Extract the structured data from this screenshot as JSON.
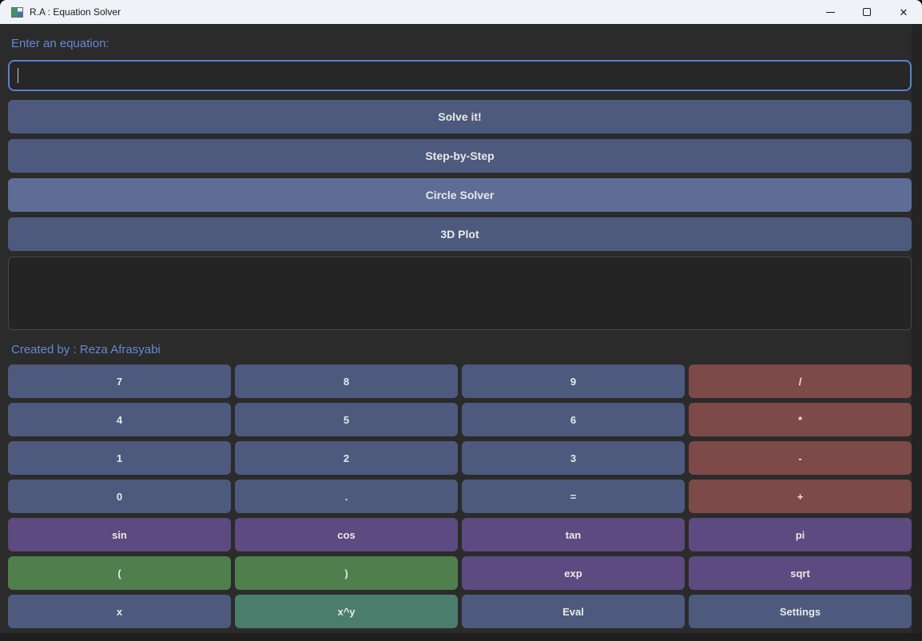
{
  "window": {
    "title": "R.A : Equation Solver",
    "controls": {
      "minimize_icon": "window-minimize",
      "maximize_icon": "window-maximize",
      "close_glyph": "✕"
    }
  },
  "colors": {
    "titlebar_bg": "#eff2f6",
    "window_bg": "#2b2b2b",
    "accent_text": "#6689d4",
    "input_border": "#5b80d1",
    "button_blue": "#4d5a7d",
    "button_blue_light": "#5d6d96",
    "button_red": "#7c4a48",
    "button_purple": "#5c4a80",
    "button_green": "#4f7f4c",
    "button_teal": "#4a7d6b",
    "button_text": "#e9e9e9",
    "output_bg": "#242424",
    "output_border": "#474747"
  },
  "equation_section": {
    "label": "Enter an equation:",
    "input_value": "",
    "input_placeholder": ""
  },
  "action_buttons": [
    {
      "label": "Solve it!",
      "variant": "blue"
    },
    {
      "label": "Step-by-Step",
      "variant": "blue"
    },
    {
      "label": "Circle Solver",
      "variant": "blue-light"
    },
    {
      "label": "3D Plot",
      "variant": "blue"
    }
  ],
  "output": {
    "text": ""
  },
  "credit": "Created by : Reza Afrasyabi",
  "keypad": {
    "rows": [
      [
        {
          "label": "7",
          "variant": "blue"
        },
        {
          "label": "8",
          "variant": "blue"
        },
        {
          "label": "9",
          "variant": "blue"
        },
        {
          "label": "/",
          "variant": "red"
        }
      ],
      [
        {
          "label": "4",
          "variant": "blue"
        },
        {
          "label": "5",
          "variant": "blue"
        },
        {
          "label": "6",
          "variant": "blue"
        },
        {
          "label": "*",
          "variant": "red"
        }
      ],
      [
        {
          "label": "1",
          "variant": "blue"
        },
        {
          "label": "2",
          "variant": "blue"
        },
        {
          "label": "3",
          "variant": "blue"
        },
        {
          "label": "-",
          "variant": "red"
        }
      ],
      [
        {
          "label": "0",
          "variant": "blue"
        },
        {
          "label": ".",
          "variant": "blue"
        },
        {
          "label": "=",
          "variant": "blue"
        },
        {
          "label": "+",
          "variant": "red"
        }
      ],
      [
        {
          "label": "sin",
          "variant": "purple"
        },
        {
          "label": "cos",
          "variant": "purple"
        },
        {
          "label": "tan",
          "variant": "purple"
        },
        {
          "label": "pi",
          "variant": "purple"
        }
      ],
      [
        {
          "label": "(",
          "variant": "green"
        },
        {
          "label": ")",
          "variant": "green"
        },
        {
          "label": "exp",
          "variant": "purple"
        },
        {
          "label": "sqrt",
          "variant": "purple"
        }
      ],
      [
        {
          "label": "x",
          "variant": "blue"
        },
        {
          "label": "x^y",
          "variant": "teal"
        },
        {
          "label": "Eval",
          "variant": "blue"
        },
        {
          "label": "Settings",
          "variant": "blue"
        }
      ]
    ]
  }
}
